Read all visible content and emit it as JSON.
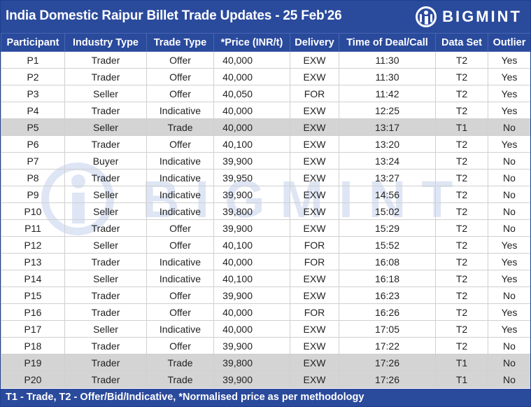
{
  "title": "India Domestic Raipur Billet Trade Updates - 25 Feb'26",
  "logo": {
    "text": "BIGMINT",
    "icon": "bigmint-logo-icon"
  },
  "watermark": {
    "text": "BIGMINT"
  },
  "columns": [
    "Participant",
    "Industry Type",
    "Trade Type",
    "*Price (INR/t)",
    "Delivery",
    "Time of Deal/Call",
    "Data Set",
    "Outlier"
  ],
  "rows": [
    [
      "P1",
      "Trader",
      "Offer",
      "40,000",
      "EXW",
      "11:30",
      "T2",
      "Yes"
    ],
    [
      "P2",
      "Trader",
      "Offer",
      "40,000",
      "EXW",
      "11:30",
      "T2",
      "Yes"
    ],
    [
      "P3",
      "Seller",
      "Offer",
      "40,050",
      "FOR",
      "11:42",
      "T2",
      "Yes"
    ],
    [
      "P4",
      "Trader",
      "Indicative",
      "40,000",
      "EXW",
      "12:25",
      "T2",
      "Yes"
    ],
    [
      "P5",
      "Seller",
      "Trade",
      "40,000",
      "EXW",
      "13:17",
      "T1",
      "No"
    ],
    [
      "P6",
      "Trader",
      "Offer",
      "40,100",
      "EXW",
      "13:20",
      "T2",
      "Yes"
    ],
    [
      "P7",
      "Buyer",
      "Indicative",
      "39,900",
      "EXW",
      "13:24",
      "T2",
      "No"
    ],
    [
      "P8",
      "Trader",
      "Indicative",
      "39,950",
      "EXW",
      "13:27",
      "T2",
      "No"
    ],
    [
      "P9",
      "Seller",
      "Indicative",
      "39,900",
      "EXW",
      "14:56",
      "T2",
      "No"
    ],
    [
      "P10",
      "Seller",
      "Indicative",
      "39,800",
      "EXW",
      "15:02",
      "T2",
      "No"
    ],
    [
      "P11",
      "Trader",
      "Offer",
      "39,900",
      "EXW",
      "15:29",
      "T2",
      "No"
    ],
    [
      "P12",
      "Seller",
      "Offer",
      "40,100",
      "FOR",
      "15:52",
      "T2",
      "Yes"
    ],
    [
      "P13",
      "Trader",
      "Indicative",
      "40,000",
      "FOR",
      "16:08",
      "T2",
      "Yes"
    ],
    [
      "P14",
      "Seller",
      "Indicative",
      "40,100",
      "EXW",
      "16:18",
      "T2",
      "Yes"
    ],
    [
      "P15",
      "Trader",
      "Offer",
      "39,900",
      "EXW",
      "16:23",
      "T2",
      "No"
    ],
    [
      "P16",
      "Trader",
      "Offer",
      "40,000",
      "FOR",
      "16:26",
      "T2",
      "Yes"
    ],
    [
      "P17",
      "Seller",
      "Indicative",
      "40,000",
      "EXW",
      "17:05",
      "T2",
      "Yes"
    ],
    [
      "P18",
      "Trader",
      "Offer",
      "39,900",
      "EXW",
      "17:22",
      "T2",
      "No"
    ],
    [
      "P19",
      "Trader",
      "Trade",
      "39,800",
      "EXW",
      "17:26",
      "T1",
      "No"
    ],
    [
      "P20",
      "Trader",
      "Trade",
      "39,900",
      "EXW",
      "17:26",
      "T1",
      "No"
    ]
  ],
  "footer": "T1 - Trade, T2 - Offer/Bid/Indicative, *Normalised price as per methodology",
  "colors": {
    "header_bg": "#2a4a9c",
    "trade_row_bg": "#d4d4d4",
    "watermark": "#3a63c2"
  }
}
